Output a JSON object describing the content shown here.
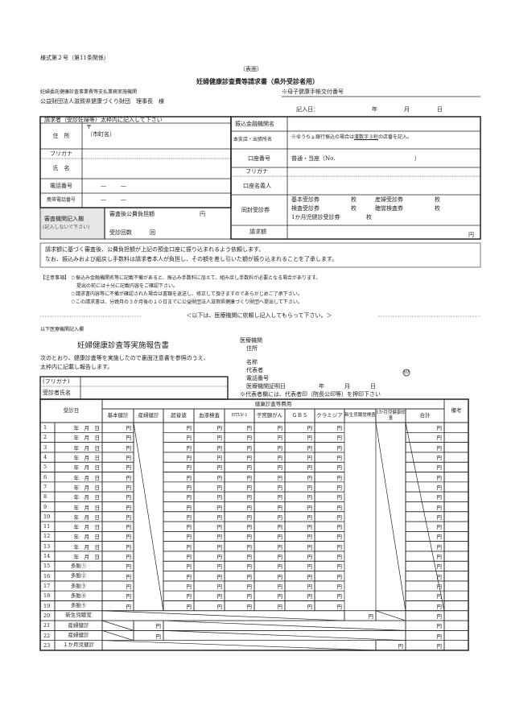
{
  "header": {
    "form_number": "様式第２号（第11条関係）",
    "side": "（表面）",
    "title": "妊婦健康診査費等請求書（県外受診者用）",
    "recipient_org": "妊婦委託健康診査事業費等支払業務実施機関",
    "recipient_name": "公益財団法人滋賀県健康づくり財団　理事長　様",
    "handbook_no_label": "※母子健康手帳交付番号",
    "entry_date": {
      "label": "記入日：",
      "year": "年",
      "month": "月",
      "day": "日"
    }
  },
  "applicant": {
    "section_title": "請求者（受診妊婦等）太枠内に記入して下さい",
    "address_label": "住　所",
    "postal_mark": "〒",
    "city_label": "（市町名）",
    "furigana_label": "フリガナ",
    "name_label": "氏　名",
    "phone_label": "電話番号",
    "mobile_label": "携帯電話番号",
    "dash": "—",
    "review": {
      "label": "審査機関記入欄",
      "note": "(記入しないで下さい)",
      "amount_label": "審査後公費負担額",
      "amount_unit": "円",
      "visits_label": "受診回数",
      "visits_unit": "回"
    }
  },
  "bank": {
    "name_label": "振込金融機関名",
    "branch_label": "本支店・出張所名",
    "branch_note_pre": "※ゆうちょ銀行振込の場合は",
    "branch_note_ul": "漢数字３桁",
    "branch_note_post": "の店番を記入。",
    "account_no_label": "口座番号",
    "account_type": "普通・当座（No.",
    "account_close": "）",
    "furigana_label": "フリガナ",
    "holder_label": "口座名義人",
    "tickets_label": "同封受診券",
    "tickets": [
      {
        "name": "基本受診券",
        "unit": "枚"
      },
      {
        "name": "産婦受診券",
        "unit": "枚"
      },
      {
        "name": "検査受診券",
        "unit": "枚"
      },
      {
        "name": "聴覚検査券",
        "unit": "枚"
      },
      {
        "name": "1か月児健診受診券",
        "unit": "枚"
      }
    ],
    "claim_label": "請求額",
    "claim_unit": "円"
  },
  "notice": [
    "請求額に基づく審査後、公費負担額が上記の預金口座に振り込まれるよう依頼します。",
    "なお、振込みおよび組戻し手数料は請求者本人が負担し、その額を差し引いた額が振り込まれることを了承します。"
  ],
  "cautions": {
    "label": "【注意事項】",
    "lines": [
      "☆振込み金融機関名等に記載不備があると、振込み手数料に加えて、組み戻し手数料が必要となる場合があります。",
      "提出の前には十分に記載内容をご確認下さい。",
      "☆請求書内容等に不備が確認された場合は書類を返送し、修正して頂きますのであらかじめご了承下さい。",
      "☆この請求書は、分娩月の３か月後の１０日までに公益財団法人滋賀県健康づくり財団へ提出して下さい。"
    ]
  },
  "divider": "＜以下は、医療機関に依頼し記入してもらって下さい。＞",
  "report": {
    "section_label": "以下医療機関記入欄",
    "title": "妊婦健康診査等実施報告書",
    "intro": [
      "次のとおり、健康診査等を実施したので裏面注意書を参照のうえ、",
      "太枠内に記載し報告します。"
    ],
    "clinic": {
      "org_label": "医療機関",
      "address_label": "住所",
      "name_label": "名称",
      "rep_label": "代表者",
      "seal": "印",
      "phone_label": "電話番号",
      "cert_date_label": "医療機関証明日",
      "year": "年",
      "month": "月",
      "day": "日",
      "seal_note": "※代表者欄には、代表者印（院長公印等）を押印下さい"
    },
    "furigana_label": "(フリガナ)",
    "patient_name_label": "受診者氏名"
  },
  "table": {
    "visit_date_header": "受診日",
    "group_header": "健康診査等費用",
    "columns": [
      "基本健診",
      "産婦健診",
      "超音波",
      "血液検査",
      "HTLV-1",
      "子宮頸がん",
      "ＧＢＳ",
      "クラミジア",
      "新生児聴覚検査",
      "1か月児健康診査",
      "合計"
    ],
    "remarks_header": "備考",
    "yen": "円",
    "rows": [
      {
        "no": "1",
        "label": "年　月　日"
      },
      {
        "no": "2",
        "label": "年　月　日"
      },
      {
        "no": "3",
        "label": "年　月　日"
      },
      {
        "no": "4",
        "label": "年　月　日"
      },
      {
        "no": "5",
        "label": "年　月　日"
      },
      {
        "no": "6",
        "label": "年　月　日"
      },
      {
        "no": "7",
        "label": "年　月　日"
      },
      {
        "no": "8",
        "label": "年　月　日"
      },
      {
        "no": "9",
        "label": "年　月　日"
      },
      {
        "no": "10",
        "label": "年　月　日"
      },
      {
        "no": "11",
        "label": "年　月　日"
      },
      {
        "no": "12",
        "label": "年　月　日"
      },
      {
        "no": "13",
        "label": "年　月　日"
      },
      {
        "no": "14",
        "label": "年　月　日"
      },
      {
        "no": "15",
        "label": "多胎①"
      },
      {
        "no": "16",
        "label": "多胎②"
      },
      {
        "no": "17",
        "label": "多胎③"
      },
      {
        "no": "18",
        "label": "多胎④"
      },
      {
        "no": "19",
        "label": "多胎⑤"
      },
      {
        "no": "20",
        "label": "新生児聴覚"
      },
      {
        "no": "21",
        "label": "産婦健診"
      },
      {
        "no": "22",
        "label": "産婦健診"
      },
      {
        "no": "23",
        "label": "１か月児健診"
      }
    ]
  }
}
